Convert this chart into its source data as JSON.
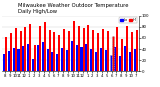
{
  "title": "Milwaukee Weather Outdoor Temperature",
  "subtitle": "Daily High/Low",
  "highs": [
    62,
    68,
    78,
    72,
    80,
    85,
    48,
    82,
    88,
    74,
    70,
    65,
    76,
    72,
    90,
    82,
    78,
    84,
    74,
    68,
    76,
    72,
    64,
    80,
    58,
    82,
    70,
    74
  ],
  "lows": [
    32,
    36,
    42,
    40,
    45,
    50,
    22,
    47,
    52,
    40,
    34,
    32,
    42,
    38,
    55,
    47,
    44,
    50,
    40,
    34,
    42,
    38,
    30,
    44,
    27,
    46,
    35,
    40
  ],
  "bar_color_high": "#ff0000",
  "bar_color_low": "#0000ff",
  "bg_color": "#ffffff",
  "ylim": [
    0,
    100
  ],
  "x_labels": [
    "8",
    "9",
    "10",
    "11",
    "12",
    "1",
    "2",
    "3",
    "4",
    "5",
    "6",
    "7",
    "8",
    "9",
    "10",
    "11",
    "12",
    "1",
    "2",
    "3",
    "4",
    "5",
    "6",
    "7",
    "8",
    "9",
    "10",
    "7"
  ],
  "title_fontsize": 3.8,
  "tick_fontsize": 2.8,
  "bar_width": 0.42,
  "highlight_index": 22,
  "yticks": [
    0,
    20,
    40,
    60,
    80,
    100
  ]
}
